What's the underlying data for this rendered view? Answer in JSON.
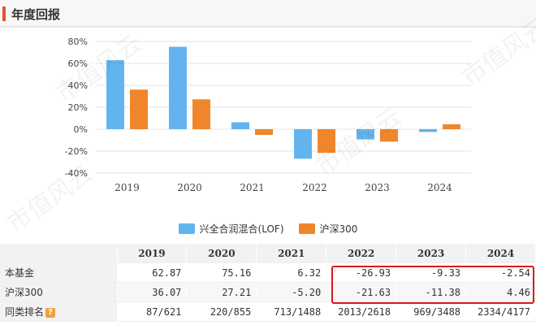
{
  "header": {
    "title": "年度回报"
  },
  "watermark": "市值风云",
  "chart_data": {
    "type": "bar",
    "categories": [
      "2019",
      "2020",
      "2021",
      "2022",
      "2023",
      "2024"
    ],
    "series": [
      {
        "name": "兴全合润混合(LOF)",
        "color": "#63b4ee",
        "values": [
          62.87,
          75.16,
          6.32,
          -26.93,
          -9.33,
          -2.54
        ]
      },
      {
        "name": "沪深300",
        "color": "#f0862b",
        "values": [
          36.07,
          27.21,
          -5.2,
          -21.63,
          -11.38,
          4.46
        ]
      }
    ],
    "ylim": [
      -40,
      80
    ],
    "yticks": [
      -40,
      -20,
      0,
      20,
      40,
      60,
      80
    ],
    "ytick_labels": [
      "-40%",
      "-20%",
      "0%",
      "20%",
      "40%",
      "60%",
      "80%"
    ],
    "grid": true,
    "legend": "bottom-center"
  },
  "table": {
    "columns": [
      "2019",
      "2020",
      "2021",
      "2022",
      "2023",
      "2024"
    ],
    "rows": [
      {
        "label": "本基金",
        "cells": [
          "62.87",
          "75.16",
          "6.32",
          "-26.93",
          "-9.33",
          "-2.54"
        ]
      },
      {
        "label": "沪深300",
        "cells": [
          "36.07",
          "27.21",
          "-5.20",
          "-21.63",
          "-11.38",
          "4.46"
        ]
      },
      {
        "label": "同类排名",
        "cells": [
          "87/621",
          "220/855",
          "713/1488",
          "2013/2618",
          "969/3488",
          "2334/4177"
        ]
      }
    ],
    "help_glyph": "?"
  }
}
